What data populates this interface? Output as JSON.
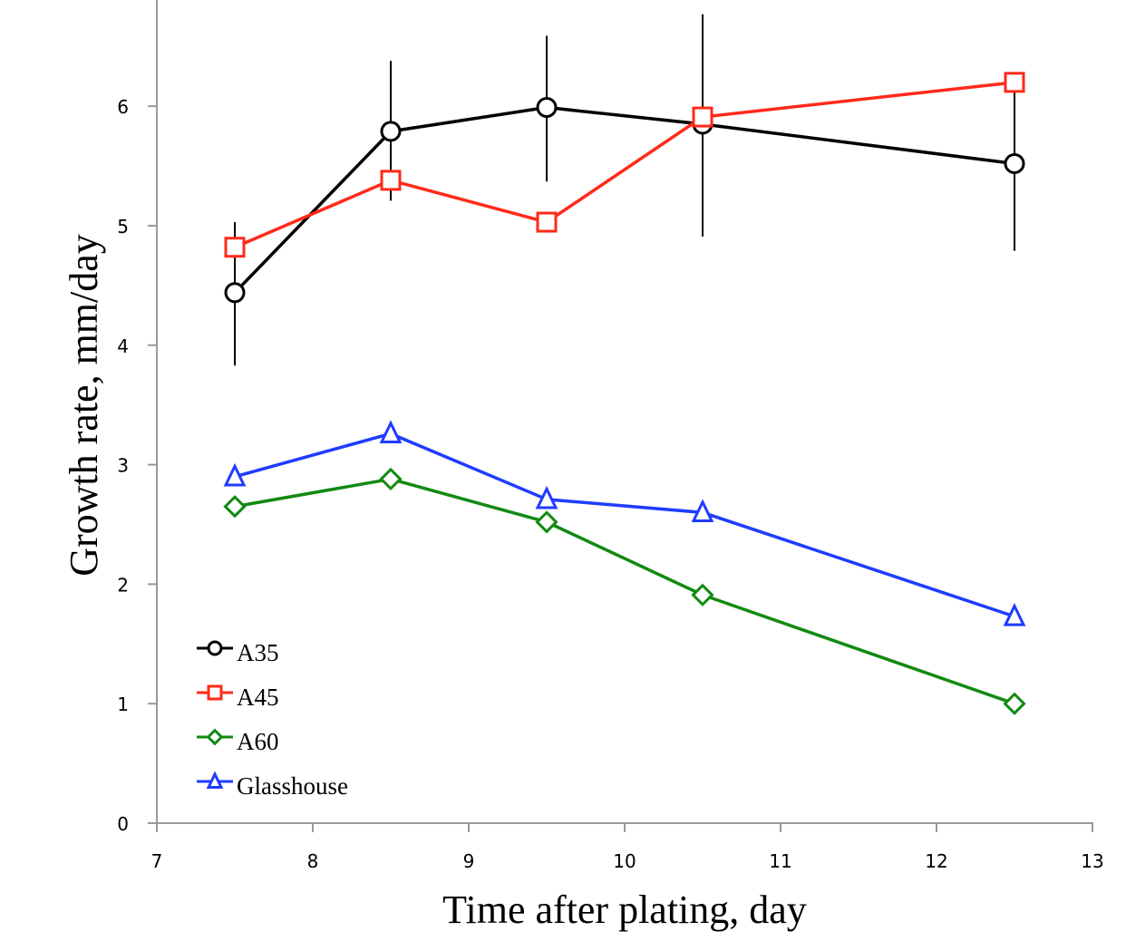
{
  "chart_data": {
    "type": "line",
    "title": "",
    "xlabel": "Time after plating, day",
    "ylabel": "Growth rate, mm/day",
    "xlim": [
      7,
      13
    ],
    "ylim": [
      0,
      6.8
    ],
    "xticks": [
      7,
      8,
      9,
      10,
      11,
      12,
      13
    ],
    "yticks": [
      0,
      1,
      2,
      3,
      4,
      5,
      6
    ],
    "grid": false,
    "legend_position": "bottom-left",
    "x": [
      7.5,
      8.5,
      9.5,
      10.5,
      12.5
    ],
    "series": [
      {
        "name": "A35",
        "color": "#000000",
        "marker": "circle",
        "values": [
          4.44,
          5.79,
          5.99,
          5.85,
          5.52
        ],
        "error_low": [
          3.83,
          5.21,
          5.37,
          4.91,
          4.79
        ],
        "error_high": [
          5.03,
          6.38,
          6.59,
          6.77,
          6.2
        ]
      },
      {
        "name": "A45",
        "color": "#ff2a1a",
        "marker": "square",
        "values": [
          4.82,
          5.38,
          5.03,
          5.91,
          6.2
        ]
      },
      {
        "name": "A60",
        "color": "#128a12",
        "marker": "diamond",
        "values": [
          2.65,
          2.88,
          2.52,
          1.91,
          1.0
        ]
      },
      {
        "name": "Glasshouse",
        "color": "#1f3cff",
        "marker": "triangle",
        "values": [
          2.9,
          3.26,
          2.71,
          2.6,
          1.73
        ]
      }
    ]
  }
}
